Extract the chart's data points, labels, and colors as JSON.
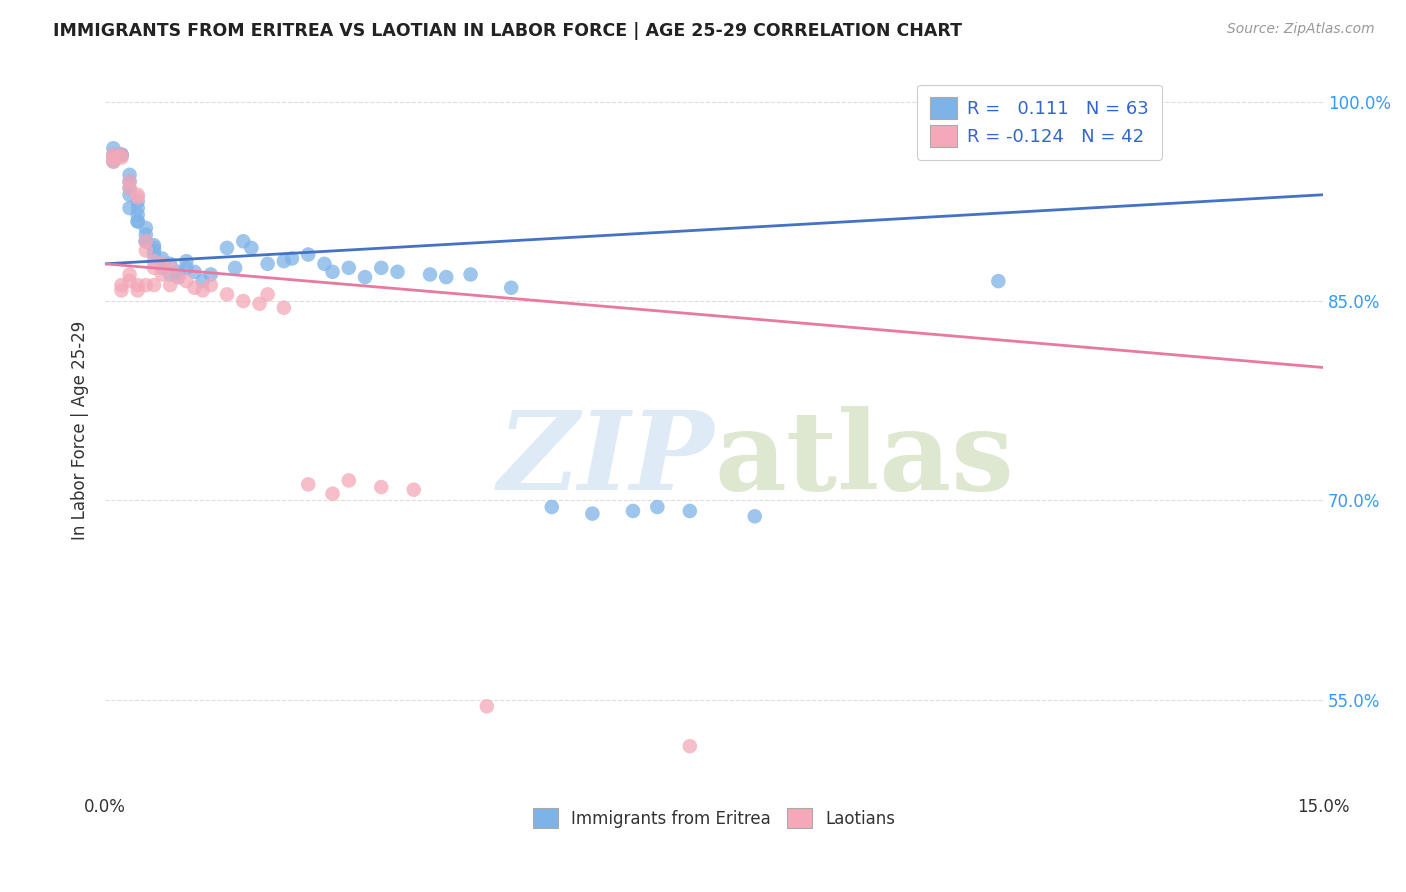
{
  "title": "IMMIGRANTS FROM ERITREA VS LAOTIAN IN LABOR FORCE | AGE 25-29 CORRELATION CHART",
  "source": "Source: ZipAtlas.com",
  "ylabel": "In Labor Force | Age 25-29",
  "xmin": 0.0,
  "xmax": 0.15,
  "ymin": 0.48,
  "ymax": 1.025,
  "yticks": [
    0.55,
    0.7,
    0.85,
    1.0
  ],
  "ytick_labels": [
    "55.0%",
    "70.0%",
    "85.0%",
    "100.0%"
  ],
  "xtick_labels": [
    "0.0%",
    "15.0%"
  ],
  "xticks": [
    0.0,
    0.15
  ],
  "legend_R_eritrea": "0.111",
  "legend_N_eritrea": "63",
  "legend_R_laotian": "-0.124",
  "legend_N_laotian": "42",
  "color_eritrea": "#7EB3E8",
  "color_laotian": "#F4A8B8",
  "color_line_eritrea": "#4472C4",
  "color_line_laotian": "#E879A0",
  "eritrea_line_x0": 0.0,
  "eritrea_line_y0": 0.878,
  "eritrea_line_x1": 0.15,
  "eritrea_line_y1": 0.93,
  "laotian_line_x0": 0.0,
  "laotian_line_y0": 0.878,
  "laotian_line_x1": 0.15,
  "laotian_line_y1": 0.8,
  "eritrea_x": [
    0.001,
    0.001,
    0.001,
    0.002,
    0.002,
    0.002,
    0.002,
    0.002,
    0.003,
    0.003,
    0.003,
    0.003,
    0.003,
    0.004,
    0.004,
    0.004,
    0.004,
    0.004,
    0.005,
    0.005,
    0.005,
    0.005,
    0.006,
    0.006,
    0.006,
    0.006,
    0.007,
    0.007,
    0.007,
    0.008,
    0.008,
    0.009,
    0.009,
    0.01,
    0.01,
    0.011,
    0.012,
    0.013,
    0.015,
    0.016,
    0.017,
    0.018,
    0.02,
    0.022,
    0.023,
    0.025,
    0.027,
    0.028,
    0.03,
    0.032,
    0.034,
    0.036,
    0.04,
    0.042,
    0.045,
    0.05,
    0.055,
    0.06,
    0.065,
    0.068,
    0.072,
    0.08,
    0.11
  ],
  "eritrea_y": [
    0.96,
    0.955,
    0.965,
    0.96,
    0.96,
    0.96,
    0.96,
    0.96,
    0.92,
    0.93,
    0.935,
    0.94,
    0.945,
    0.915,
    0.91,
    0.92,
    0.925,
    0.91,
    0.895,
    0.9,
    0.905,
    0.895,
    0.89,
    0.888,
    0.885,
    0.892,
    0.878,
    0.882,
    0.875,
    0.878,
    0.87,
    0.872,
    0.868,
    0.88,
    0.875,
    0.872,
    0.865,
    0.87,
    0.89,
    0.875,
    0.895,
    0.89,
    0.878,
    0.88,
    0.882,
    0.885,
    0.878,
    0.872,
    0.875,
    0.868,
    0.875,
    0.872,
    0.87,
    0.868,
    0.87,
    0.86,
    0.695,
    0.69,
    0.692,
    0.695,
    0.692,
    0.688,
    0.865
  ],
  "laotian_x": [
    0.001,
    0.001,
    0.001,
    0.002,
    0.002,
    0.002,
    0.002,
    0.003,
    0.003,
    0.003,
    0.003,
    0.004,
    0.004,
    0.004,
    0.004,
    0.005,
    0.005,
    0.005,
    0.006,
    0.006,
    0.006,
    0.007,
    0.007,
    0.008,
    0.008,
    0.009,
    0.01,
    0.011,
    0.012,
    0.013,
    0.015,
    0.017,
    0.019,
    0.02,
    0.022,
    0.025,
    0.028,
    0.03,
    0.034,
    0.038,
    0.047,
    0.072
  ],
  "laotian_y": [
    0.96,
    0.958,
    0.955,
    0.96,
    0.958,
    0.862,
    0.858,
    0.94,
    0.935,
    0.87,
    0.865,
    0.928,
    0.93,
    0.862,
    0.858,
    0.895,
    0.888,
    0.862,
    0.88,
    0.875,
    0.862,
    0.878,
    0.87,
    0.875,
    0.862,
    0.868,
    0.865,
    0.86,
    0.858,
    0.862,
    0.855,
    0.85,
    0.848,
    0.855,
    0.845,
    0.712,
    0.705,
    0.715,
    0.71,
    0.708,
    0.545,
    0.515
  ],
  "background_color": "#FFFFFF",
  "grid_color": "#DDDDDD"
}
